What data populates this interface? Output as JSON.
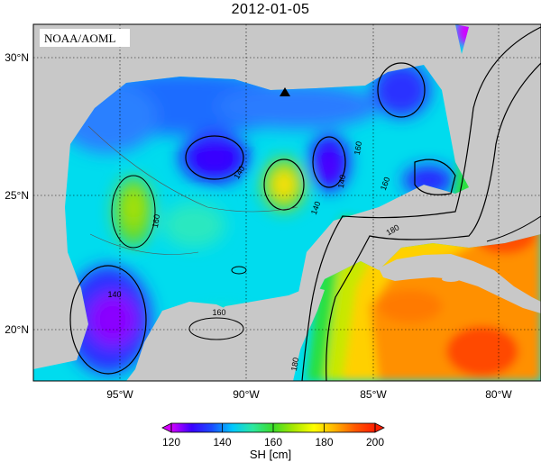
{
  "title": "2012-01-05",
  "credit": "NOAA/AOML",
  "map": {
    "region": "Gulf of Mexico",
    "lat_ticks": [
      "30°N",
      "25°N",
      "20°N"
    ],
    "lon_ticks": [
      "95°W",
      "90°W",
      "85°W",
      "80°W"
    ],
    "grid": true,
    "marker": "triangle",
    "contour_labels": [
      "140",
      "140",
      "140",
      "140",
      "160",
      "160",
      "160",
      "160",
      "180",
      "180"
    ]
  },
  "colorbar": {
    "ticks": [
      "120",
      "140",
      "160",
      "180",
      "200"
    ],
    "label": "SH [cm]",
    "colors": [
      "#d400ff",
      "#3a00ff",
      "#1a4dff",
      "#00c8ff",
      "#2ce8a0",
      "#3cdc28",
      "#a8e800",
      "#ffff00",
      "#ffb400",
      "#ff5a00",
      "#ff1e00"
    ]
  },
  "colors": {
    "land": "#c8c8c8",
    "background": "#ffffff"
  }
}
